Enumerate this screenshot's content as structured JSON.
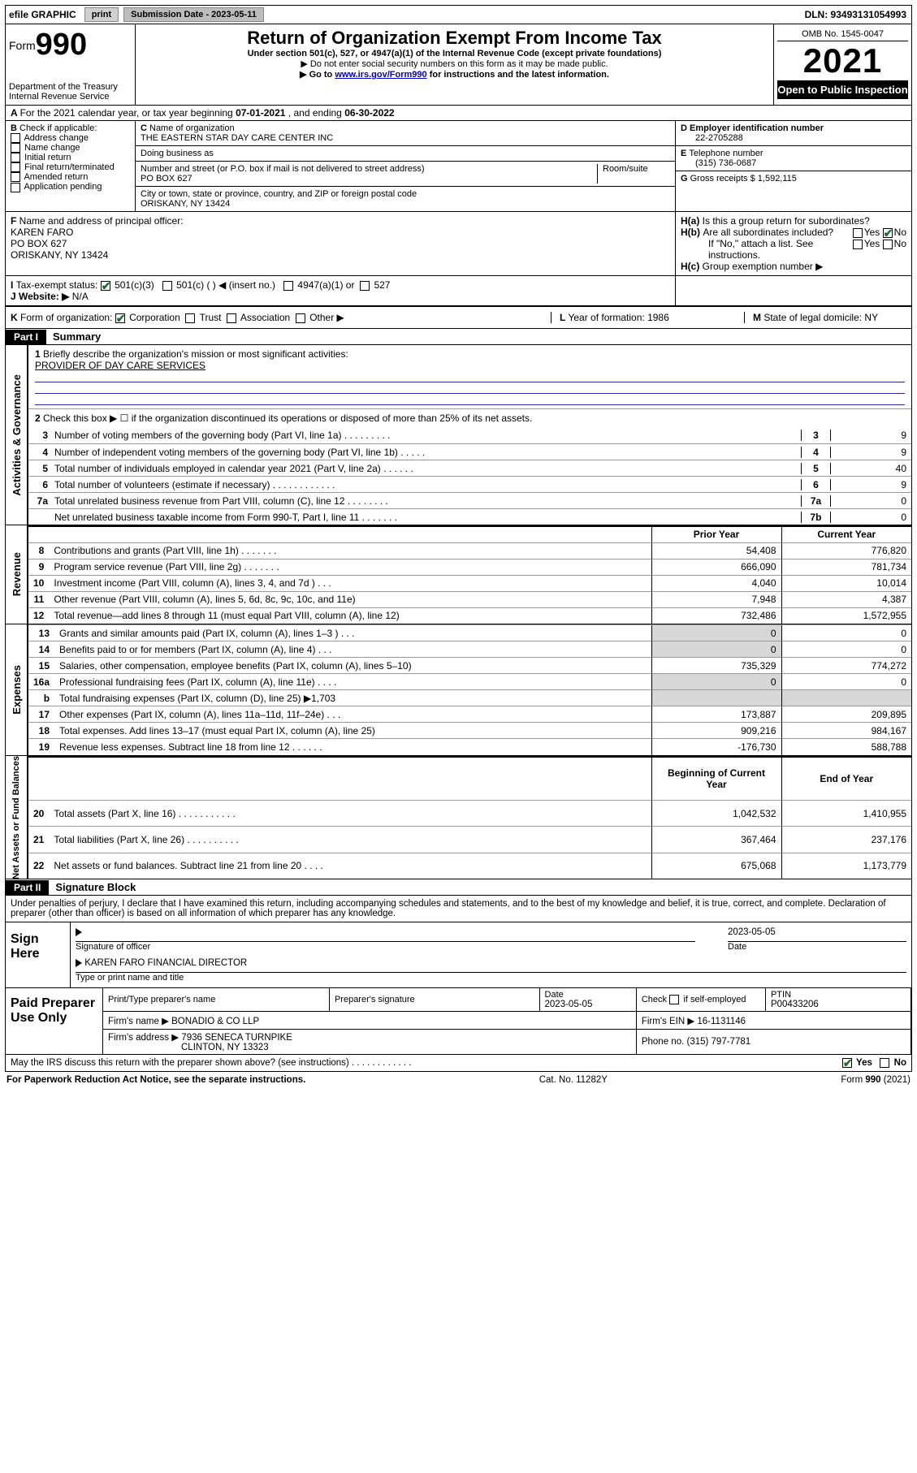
{
  "topbar": {
    "efile": "efile GRAPHIC",
    "print": "print",
    "subdate_lbl": "Submission Date - 2023-05-11",
    "dln": "DLN: 93493131054993"
  },
  "header": {
    "form_prefix": "Form",
    "form_num": "990",
    "dept": "Department of the Treasury",
    "irs": "Internal Revenue Service",
    "title": "Return of Organization Exempt From Income Tax",
    "subtitle": "Under section 501(c), 527, or 4947(a)(1) of the Internal Revenue Code (except private foundations)",
    "note1": "▶ Do not enter social security numbers on this form as it may be made public.",
    "note2_a": "▶ Go to ",
    "note2_link": "www.irs.gov/Form990",
    "note2_b": " for instructions and the latest information.",
    "omb": "OMB No. 1545-0047",
    "year": "2021",
    "open": "Open to Public Inspection"
  },
  "A": {
    "text_a": "For the 2021 calendar year, or tax year beginning ",
    "begin": "07-01-2021",
    "text_b": " , and ending ",
    "end": "06-30-2022"
  },
  "B": {
    "label": "Check if applicable:",
    "opts": [
      "Address change",
      "Name change",
      "Initial return",
      "Final return/terminated",
      "Amended return",
      "Application pending"
    ]
  },
  "C": {
    "name_lbl": "Name of organization",
    "name": "THE EASTERN STAR DAY CARE CENTER INC",
    "dba_lbl": "Doing business as",
    "street_lbl": "Number and street (or P.O. box if mail is not delivered to street address)",
    "room_lbl": "Room/suite",
    "street": "PO BOX 627",
    "city_lbl": "City or town, state or province, country, and ZIP or foreign postal code",
    "city": "ORISKANY, NY  13424"
  },
  "D": {
    "lbl": "Employer identification number",
    "val": "22-2705288"
  },
  "E": {
    "lbl": "Telephone number",
    "val": "(315) 736-0687"
  },
  "G": {
    "lbl": "Gross receipts $",
    "val": "1,592,115"
  },
  "F": {
    "lbl": "Name and address of principal officer:",
    "l1": "KAREN FARO",
    "l2": "PO BOX 627",
    "l3": "ORISKANY, NY  13424"
  },
  "H": {
    "a": "Is this a group return for subordinates?",
    "b": "Are all subordinates included?",
    "b2": "If \"No,\" attach a list. See instructions.",
    "c": "Group exemption number ▶",
    "yes": "Yes",
    "no": "No"
  },
  "I": {
    "lbl": "Tax-exempt status:",
    "o1": "501(c)(3)",
    "o2": "501(c) (  ) ◀ (insert no.)",
    "o3": "4947(a)(1) or",
    "o4": "527"
  },
  "J": {
    "lbl": "Website: ▶",
    "val": "N/A"
  },
  "K": {
    "lbl": "Form of organization:",
    "o1": "Corporation",
    "o2": "Trust",
    "o3": "Association",
    "o4": "Other ▶"
  },
  "L": {
    "lbl": "Year of formation:",
    "val": "1986"
  },
  "M": {
    "lbl": "State of legal domicile:",
    "val": "NY"
  },
  "partI": {
    "bar": "Part I",
    "title": "Summary"
  },
  "summary": {
    "q1": "Briefly describe the organization's mission or most significant activities:",
    "mission": "PROVIDER OF DAY CARE SERVICES",
    "q2": "Check this box ▶ ☐  if the organization discontinued its operations or disposed of more than 25% of its net assets.",
    "lines": [
      {
        "n": "3",
        "d": "Number of voting members of the governing body (Part VI, line 1a)  .   .   .   .   .   .   .   .   .",
        "k": "3",
        "v": "9"
      },
      {
        "n": "4",
        "d": "Number of independent voting members of the governing body (Part VI, line 1b)   .   .   .   .   .",
        "k": "4",
        "v": "9"
      },
      {
        "n": "5",
        "d": "Total number of individuals employed in calendar year 2021 (Part V, line 2a)   .   .   .   .   .   .",
        "k": "5",
        "v": "40"
      },
      {
        "n": "6",
        "d": "Total number of volunteers (estimate if necessary)   .   .   .   .   .   .   .   .   .   .   .   .",
        "k": "6",
        "v": "9"
      },
      {
        "n": "7a",
        "d": "Total unrelated business revenue from Part VIII, column (C), line 12   .   .   .   .   .   .   .   .",
        "k": "7a",
        "v": "0"
      },
      {
        "n": "",
        "d": "Net unrelated business taxable income from Form 990-T, Part I, line 11   .   .   .   .   .   .   .",
        "k": "7b",
        "v": "0"
      }
    ]
  },
  "cols": {
    "prior": "Prior Year",
    "current": "Current Year",
    "beg": "Beginning of Current Year",
    "end": "End of Year"
  },
  "revenue": {
    "side": "Revenue",
    "rows": [
      {
        "n": "8",
        "d": "Contributions and grants (Part VIII, line 1h)   .   .   .   .   .   .   .",
        "p": "54,408",
        "c": "776,820"
      },
      {
        "n": "9",
        "d": "Program service revenue (Part VIII, line 2g)   .   .   .   .   .   .   .",
        "p": "666,090",
        "c": "781,734"
      },
      {
        "n": "10",
        "d": "Investment income (Part VIII, column (A), lines 3, 4, and 7d )   .   .   .",
        "p": "4,040",
        "c": "10,014"
      },
      {
        "n": "11",
        "d": "Other revenue (Part VIII, column (A), lines 5, 6d, 8c, 9c, 10c, and 11e)",
        "p": "7,948",
        "c": "4,387"
      },
      {
        "n": "12",
        "d": "Total revenue—add lines 8 through 11 (must equal Part VIII, column (A), line 12)",
        "p": "732,486",
        "c": "1,572,955"
      }
    ]
  },
  "expenses": {
    "side": "Expenses",
    "rows": [
      {
        "n": "13",
        "d": "Grants and similar amounts paid (Part IX, column (A), lines 1–3 )   .   .   .",
        "p": "0",
        "c": "0",
        "shade": true
      },
      {
        "n": "14",
        "d": "Benefits paid to or for members (Part IX, column (A), line 4)   .   .   .",
        "p": "0",
        "c": "0",
        "shade": true
      },
      {
        "n": "15",
        "d": "Salaries, other compensation, employee benefits (Part IX, column (A), lines 5–10)",
        "p": "735,329",
        "c": "774,272"
      },
      {
        "n": "16a",
        "d": "Professional fundraising fees (Part IX, column (A), line 11e)   .   .   .   .",
        "p": "0",
        "c": "0",
        "shade": true
      },
      {
        "n": "b",
        "d": "Total fundraising expenses (Part IX, column (D), line 25) ▶1,703",
        "p": "",
        "c": "",
        "shade": true,
        "grayc": true
      },
      {
        "n": "17",
        "d": "Other expenses (Part IX, column (A), lines 11a–11d, 11f–24e)   .   .   .",
        "p": "173,887",
        "c": "209,895"
      },
      {
        "n": "18",
        "d": "Total expenses. Add lines 13–17 (must equal Part IX, column (A), line 25)",
        "p": "909,216",
        "c": "984,167"
      },
      {
        "n": "19",
        "d": "Revenue less expenses. Subtract line 18 from line 12   .   .   .   .   .   .",
        "p": "-176,730",
        "c": "588,788"
      }
    ]
  },
  "netassets": {
    "side": "Net Assets or Fund Balances",
    "rows": [
      {
        "n": "20",
        "d": "Total assets (Part X, line 16)   .   .   .   .   .   .   .   .   .   .   .",
        "p": "1,042,532",
        "c": "1,410,955"
      },
      {
        "n": "21",
        "d": "Total liabilities (Part X, line 26)   .   .   .   .   .   .   .   .   .   .",
        "p": "367,464",
        "c": "237,176"
      },
      {
        "n": "22",
        "d": "Net assets or fund balances. Subtract line 21 from line 20   .   .   .   .",
        "p": "675,068",
        "c": "1,173,779"
      }
    ]
  },
  "partII": {
    "bar": "Part II",
    "title": "Signature Block"
  },
  "sig": {
    "decl": "Under penalties of perjury, I declare that I have examined this return, including accompanying schedules and statements, and to the best of my knowledge and belief, it is true, correct, and complete. Declaration of preparer (other than officer) is based on all information of which preparer has any knowledge.",
    "sign_here": "Sign Here",
    "sig_officer": "Signature of officer",
    "date_lbl": "Date",
    "date": "2023-05-05",
    "name": "KAREN FARO  FINANCIAL DIRECTOR",
    "name_lbl": "Type or print name and title"
  },
  "paid": {
    "lab": "Paid Preparer Use Only",
    "h1": "Print/Type preparer's name",
    "h2": "Preparer's signature",
    "h3": "Date",
    "date": "2023-05-05",
    "h4a": "Check",
    "h4b": "if self-employed",
    "h5": "PTIN",
    "ptin": "P00433206",
    "firm_lbl": "Firm's name ▶",
    "firm": "BONADIO & CO LLP",
    "ein_lbl": "Firm's EIN ▶",
    "ein": "16-1131146",
    "addr_lbl": "Firm's address ▶",
    "addr1": "7936 SENECA TURNPIKE",
    "addr2": "CLINTON, NY  13323",
    "phone_lbl": "Phone no.",
    "phone": "(315) 797-7781",
    "discuss": "May the IRS discuss this return with the preparer shown above? (see instructions)   .   .   .   .   .   .   .   .   .   .   .   ."
  },
  "footer": {
    "l": "For Paperwork Reduction Act Notice, see the separate instructions.",
    "c": "Cat. No. 11282Y",
    "r": "Form 990 (2021)"
  }
}
